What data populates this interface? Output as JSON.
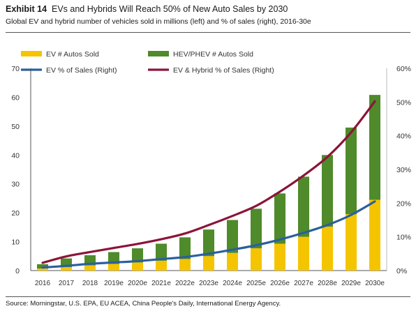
{
  "header": {
    "exhibit_label": "Exhibit 14",
    "title": "EVs and Hybrids Will Reach 50% of New Auto Sales by 2030",
    "subtitle": "Global EV and hybrid number of vehicles sold in millions (left) and % of sales (right), 2016-30e"
  },
  "footer": {
    "source": "Source: Morningstar, U.S. EPA, EU ACEA, China People's Daily, International Energy Agency."
  },
  "colors": {
    "ev_bar": "#f5c400",
    "hev_bar": "#4f8a2b",
    "ev_line": "#2b5f9e",
    "hybrid_line": "#8b1538"
  },
  "chart_data": {
    "type": "bar",
    "stacked": true,
    "title": "EVs and Hybrids Will Reach 50% of New Auto Sales by 2030",
    "categories": [
      "2016",
      "2017",
      "2018",
      "2019e",
      "2020e",
      "2021e",
      "2022e",
      "2023e",
      "2024e",
      "2025e",
      "2026e",
      "2027e",
      "2028e",
      "2029e",
      "2030e"
    ],
    "series": [
      {
        "name": "EV # Autos Sold",
        "axis": "left",
        "type": "bar",
        "values": [
          0.7,
          1.2,
          1.8,
          2.3,
          2.8,
          3.4,
          4.0,
          5.0,
          6.1,
          7.7,
          9.3,
          11.7,
          15.2,
          19.5,
          24.5
        ]
      },
      {
        "name": "HEV/PHEV # Autos Sold",
        "axis": "left",
        "type": "bar",
        "values": [
          1.5,
          3.0,
          3.5,
          4.1,
          4.9,
          5.9,
          7.5,
          9.2,
          11.4,
          13.7,
          17.4,
          20.8,
          24.8,
          30.0,
          36.3
        ]
      },
      {
        "name": "EV % of Sales (Right)",
        "axis": "right",
        "type": "line",
        "values": [
          0.9,
          1.4,
          2.0,
          2.4,
          2.8,
          3.4,
          4.0,
          5.0,
          6.2,
          7.5,
          9.2,
          11.2,
          13.5,
          16.5,
          20.5
        ]
      },
      {
        "name": "EV & Hybrid % of Sales (Right)",
        "axis": "right",
        "type": "line",
        "values": [
          2.3,
          4.2,
          5.5,
          6.7,
          7.9,
          9.3,
          11.0,
          13.5,
          16.2,
          19.2,
          23.4,
          28.2,
          33.7,
          41.0,
          50.2
        ]
      }
    ],
    "y_left": {
      "min": 0,
      "max": 70,
      "ticks": [
        "0",
        "10",
        "20",
        "30",
        "40",
        "50",
        "60",
        "70"
      ]
    },
    "y_right": {
      "min": 0,
      "max": 60,
      "ticks": [
        "0%",
        "10%",
        "20%",
        "30%",
        "40%",
        "50%",
        "60%"
      ]
    },
    "grid": false,
    "legend_position": "top"
  }
}
